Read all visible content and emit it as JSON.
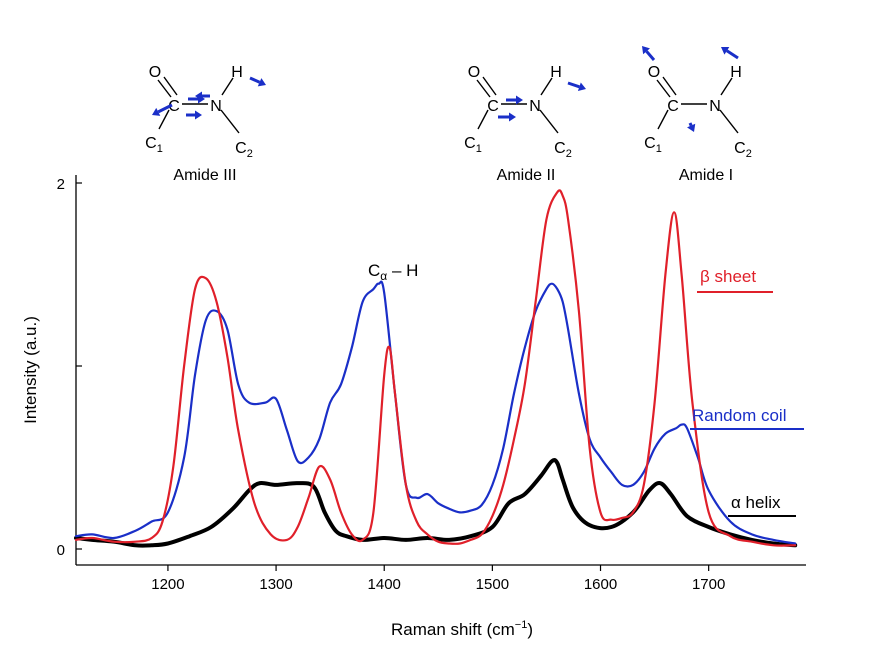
{
  "chart_data": {
    "type": "line",
    "xlabel": "Raman shift (cm",
    "xlabel_sup": "−1",
    "xlabel_close": ")",
    "ylabel": "Intensity (a.u.)",
    "xlim": [
      1115,
      1790
    ],
    "ylim": [
      0,
      2
    ],
    "xticks": [
      1200,
      1300,
      1400,
      1500,
      1600,
      1700
    ],
    "yticks": [
      0,
      1,
      2
    ],
    "ytick_labels": [
      "0",
      "",
      "2"
    ],
    "peak_annotation": {
      "main": "C",
      "sub": "α",
      "rest": " – H"
    },
    "structure_labels": [
      "Amide III",
      "Amide II",
      "Amide I"
    ],
    "atoms": {
      "O": "O",
      "C": "C",
      "N": "N",
      "H": "H",
      "C1": "C",
      "C1_sub": "1",
      "C2": "C",
      "C2_sub": "2"
    },
    "series": [
      {
        "name": "β sheet",
        "color": "#e0202a",
        "x": [
          1115,
          1130,
          1150,
          1170,
          1185,
          1195,
          1205,
          1215,
          1225,
          1235,
          1245,
          1255,
          1265,
          1280,
          1295,
          1310,
          1320,
          1330,
          1340,
          1350,
          1360,
          1370,
          1380,
          1390,
          1400,
          1405,
          1410,
          1420,
          1430,
          1440,
          1450,
          1460,
          1470,
          1480,
          1490,
          1500,
          1510,
          1520,
          1530,
          1540,
          1550,
          1560,
          1565,
          1570,
          1580,
          1590,
          1600,
          1610,
          1620,
          1630,
          1640,
          1650,
          1660,
          1668,
          1675,
          1685,
          1700,
          1720,
          1740,
          1760,
          1780
        ],
        "y": [
          0.05,
          0.06,
          0.04,
          0.04,
          0.06,
          0.15,
          0.45,
          1.0,
          1.42,
          1.48,
          1.35,
          1.05,
          0.65,
          0.25,
          0.08,
          0.05,
          0.12,
          0.28,
          0.45,
          0.38,
          0.2,
          0.08,
          0.05,
          0.2,
          0.95,
          1.1,
          0.85,
          0.35,
          0.15,
          0.08,
          0.04,
          0.03,
          0.03,
          0.05,
          0.08,
          0.18,
          0.35,
          0.6,
          0.9,
          1.35,
          1.8,
          1.95,
          1.93,
          1.8,
          1.3,
          0.55,
          0.2,
          0.16,
          0.17,
          0.2,
          0.35,
          0.8,
          1.5,
          1.84,
          1.5,
          0.8,
          0.2,
          0.07,
          0.04,
          0.02,
          0.02
        ]
      },
      {
        "name": "Random coil",
        "color": "#1a2fc8",
        "x": [
          1115,
          1130,
          1150,
          1170,
          1185,
          1200,
          1215,
          1225,
          1235,
          1245,
          1255,
          1265,
          1275,
          1290,
          1300,
          1310,
          1320,
          1330,
          1340,
          1350,
          1360,
          1370,
          1380,
          1390,
          1395,
          1400,
          1410,
          1420,
          1430,
          1440,
          1450,
          1460,
          1470,
          1480,
          1490,
          1500,
          1510,
          1520,
          1530,
          1540,
          1550,
          1555,
          1560,
          1565,
          1570,
          1580,
          1590,
          1600,
          1610,
          1620,
          1630,
          1640,
          1650,
          1660,
          1670,
          1675,
          1680,
          1690,
          1700,
          1720,
          1740,
          1760,
          1780
        ],
        "y": [
          0.07,
          0.08,
          0.06,
          0.1,
          0.15,
          0.2,
          0.5,
          0.95,
          1.25,
          1.3,
          1.2,
          0.9,
          0.8,
          0.8,
          0.82,
          0.65,
          0.48,
          0.5,
          0.6,
          0.8,
          0.9,
          1.1,
          1.35,
          1.42,
          1.45,
          1.4,
          0.85,
          0.35,
          0.28,
          0.3,
          0.25,
          0.22,
          0.2,
          0.21,
          0.24,
          0.35,
          0.55,
          0.85,
          1.1,
          1.3,
          1.42,
          1.45,
          1.42,
          1.35,
          1.2,
          0.85,
          0.6,
          0.5,
          0.42,
          0.35,
          0.35,
          0.42,
          0.55,
          0.63,
          0.66,
          0.68,
          0.66,
          0.5,
          0.32,
          0.15,
          0.08,
          0.05,
          0.03
        ]
      },
      {
        "name": "α helix",
        "color": "#000000",
        "x": [
          1115,
          1130,
          1150,
          1170,
          1185,
          1200,
          1220,
          1240,
          1260,
          1275,
          1285,
          1300,
          1320,
          1335,
          1345,
          1355,
          1365,
          1380,
          1400,
          1420,
          1440,
          1460,
          1480,
          1500,
          1515,
          1530,
          1545,
          1555,
          1560,
          1565,
          1575,
          1590,
          1610,
          1630,
          1645,
          1655,
          1665,
          1680,
          1700,
          1720,
          1740,
          1760,
          1780
        ],
        "y": [
          0.06,
          0.05,
          0.04,
          0.02,
          0.02,
          0.03,
          0.07,
          0.12,
          0.22,
          0.32,
          0.36,
          0.35,
          0.36,
          0.34,
          0.2,
          0.1,
          0.07,
          0.05,
          0.06,
          0.05,
          0.06,
          0.05,
          0.07,
          0.12,
          0.25,
          0.3,
          0.4,
          0.48,
          0.47,
          0.38,
          0.22,
          0.13,
          0.12,
          0.2,
          0.32,
          0.36,
          0.3,
          0.18,
          0.12,
          0.08,
          0.05,
          0.03,
          0.02
        ]
      }
    ]
  }
}
